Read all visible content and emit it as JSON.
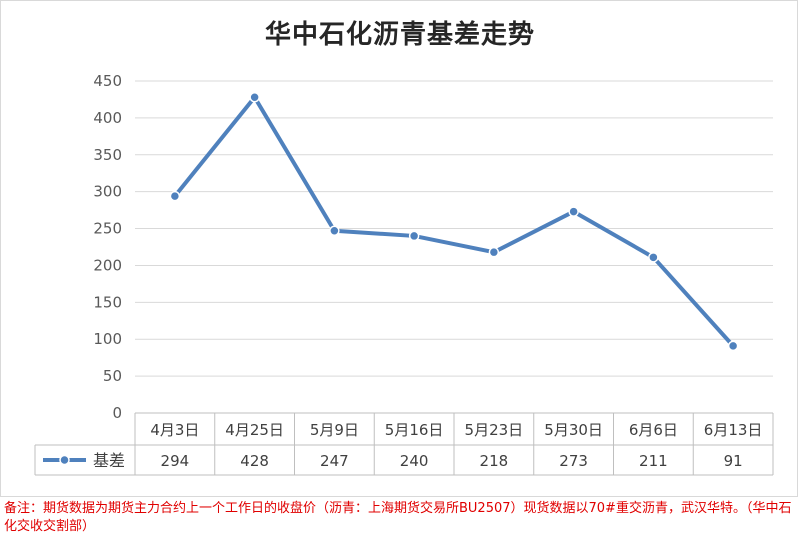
{
  "chart_data": {
    "type": "line",
    "title": "华中石化沥青基差走势",
    "categories": [
      "4月3日",
      "4月25日",
      "5月9日",
      "5月16日",
      "5月23日",
      "5月30日",
      "6月6日",
      "6月13日"
    ],
    "series": [
      {
        "name": "基差",
        "values": [
          294,
          428,
          247,
          240,
          218,
          273,
          211,
          91
        ]
      }
    ],
    "point_values": [
      294,
      428,
      247,
      240,
      218,
      273,
      211,
      91
    ],
    "ylim": [
      0,
      450
    ],
    "yticks": [
      0,
      50,
      100,
      150,
      200,
      250,
      300,
      350,
      400,
      450
    ],
    "grid": true,
    "legend": "data-table",
    "colors": {
      "series": "#4f81bd",
      "grid": "#d9d9d9",
      "table_border": "#bfbfbf"
    }
  },
  "footnote": "备注：期货数据为期货主力合约上一个工作日的收盘价（沥青：上海期货交易所BU2507）现货数据以70#重交沥青，武汉华特。（华中石化交收交割部）"
}
